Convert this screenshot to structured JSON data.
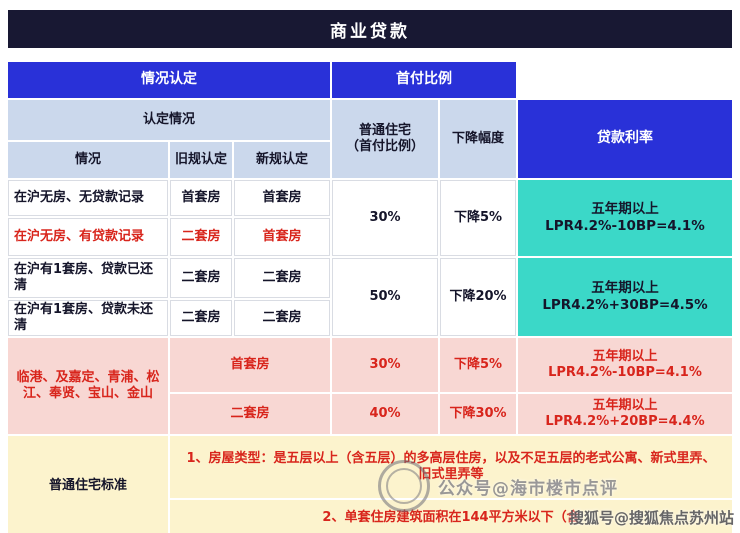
{
  "title": "商业贷款",
  "headers": {
    "situation_group": "情况认定",
    "down_payment_group": "首付比例",
    "determination": "认定情况",
    "normal_housing_line1": "普通住宅",
    "normal_housing_line2": "（首付比例）",
    "drop_range": "下降幅度",
    "loan_rate": "贷款利率",
    "situation": "情况",
    "old_rule": "旧规认定",
    "new_rule": "新规认定"
  },
  "main_rows": [
    {
      "situation": "在沪无房、无贷款记录",
      "old_rule": "首套房",
      "new_rule": "首套房"
    },
    {
      "situation": "在沪无房、有贷款记录",
      "old_rule": "二套房",
      "new_rule": "首套房"
    },
    {
      "situation": "在沪有1套房、贷款已还清",
      "old_rule": "二套房",
      "new_rule": "二套房"
    },
    {
      "situation": "在沪有1套房、贷款未还清",
      "old_rule": "二套房",
      "new_rule": "二套房"
    }
  ],
  "merged_groups": [
    {
      "down_payment": "30%",
      "drop": "下降5%",
      "rate_term": "五年期以上",
      "rate_formula": "LPR4.2%-10BP=4.1%"
    },
    {
      "down_payment": "50%",
      "drop": "下降20%",
      "rate_term": "五年期以上",
      "rate_formula": "LPR4.2%+30BP=4.5%"
    }
  ],
  "suburb": {
    "area": "临港、及嘉定、青浦、松江、奉贤、宝山、金山",
    "rows": [
      {
        "type": "首套房",
        "down_payment": "30%",
        "drop": "下降5%",
        "rate_term": "五年期以上",
        "rate_formula": "LPR4.2%-10BP=4.1%"
      },
      {
        "type": "二套房",
        "down_payment": "40%",
        "drop": "下降30%",
        "rate_term": "五年期以上",
        "rate_formula": "LPR4.2%+20BP=4.4%"
      }
    ]
  },
  "notes": {
    "label": "普通住宅标准",
    "note1": "1、房屋类型：是五层以上（含五层）的多高层住房，以及不足五层的老式公寓、新式里弄、旧式里弄等",
    "note2": "2、单套住房建筑面积在144平方米以下（含"
  },
  "watermarks": {
    "stamp_text": "公众号@海市楼市点评",
    "bottom_right": "搜狐号@搜狐焦点苏州站"
  },
  "colors": {
    "title_bg": "#181833",
    "header_blue": "#2931d8",
    "light_blue": "#cbd8ec",
    "teal": "#3bd8c8",
    "pink": "#f8d7d3",
    "yellow": "#fcf3cd",
    "red_text": "#d8251c"
  }
}
